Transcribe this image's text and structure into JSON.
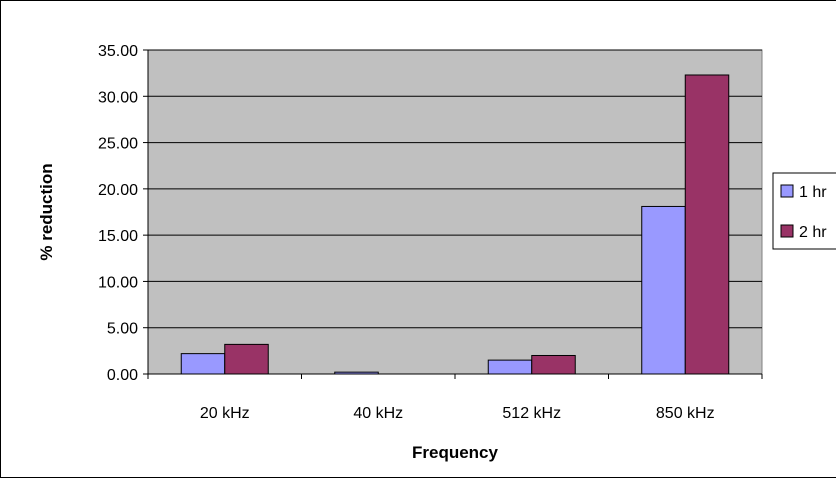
{
  "chart_data": {
    "type": "bar",
    "title": "",
    "xlabel": "Frequency",
    "ylabel": "% reduction",
    "categories": [
      "20 kHz",
      "40 kHz",
      "512 kHz",
      "850 kHz"
    ],
    "series": [
      {
        "name": "1 hr",
        "color": "#9999ff",
        "values": [
          2.2,
          0.2,
          1.5,
          18.1
        ]
      },
      {
        "name": "2 hr",
        "color": "#993366",
        "values": [
          3.2,
          0.0,
          2.0,
          32.3
        ]
      }
    ],
    "ylim": [
      0,
      35
    ],
    "yticks": [
      "0.00",
      "5.00",
      "10.00",
      "15.00",
      "20.00",
      "25.00",
      "30.00",
      "35.00"
    ],
    "grid": true,
    "plot_background": "#c0c0c0",
    "legend_position": "right"
  }
}
